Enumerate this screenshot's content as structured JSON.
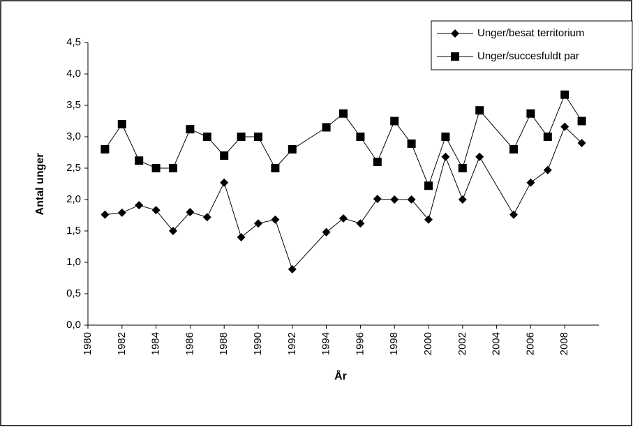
{
  "chart_data": {
    "type": "line",
    "y_label": "Antal unger",
    "x_label": "År",
    "x": [
      1981,
      1982,
      1983,
      1984,
      1985,
      1986,
      1987,
      1988,
      1989,
      1990,
      1991,
      1992,
      1994,
      1995,
      1996,
      1997,
      1998,
      1999,
      2000,
      2001,
      2002,
      2003,
      2005,
      2006,
      2007,
      2008,
      2009
    ],
    "series": [
      {
        "name": "Unger/besat territorium",
        "color": "#000000",
        "marker": "diamond",
        "values": [
          1.76,
          1.79,
          1.91,
          1.83,
          1.5,
          1.8,
          1.72,
          2.27,
          1.4,
          1.62,
          1.68,
          0.89,
          1.48,
          1.7,
          1.62,
          2.01,
          2.0,
          2.0,
          1.68,
          2.68,
          2.0,
          2.68,
          1.76,
          2.27,
          2.47,
          3.16,
          2.9
        ]
      },
      {
        "name": "Unger/succesfuldt par",
        "color": "#000000",
        "marker": "square",
        "values": [
          2.8,
          3.2,
          2.62,
          2.5,
          2.5,
          3.12,
          3.0,
          2.7,
          3.0,
          3.0,
          2.5,
          2.8,
          3.15,
          3.37,
          3.0,
          2.6,
          3.25,
          2.89,
          2.22,
          3.0,
          2.5,
          3.42,
          2.8,
          3.37,
          3.0,
          3.67,
          3.25
        ]
      }
    ],
    "xlim": [
      1980,
      2010
    ],
    "xticks": [
      1980,
      1982,
      1984,
      1986,
      1988,
      1990,
      1992,
      1994,
      1996,
      1998,
      2000,
      2002,
      2004,
      2006,
      2008
    ],
    "ylim": [
      0,
      4.5
    ],
    "yticks": [
      {
        "value": 0,
        "label": "0,0"
      },
      {
        "value": 0.5,
        "label": "0,5"
      },
      {
        "value": 1,
        "label": "1,0"
      },
      {
        "value": 1.5,
        "label": "1,5"
      },
      {
        "value": 2,
        "label": "2,0"
      },
      {
        "value": 2.5,
        "label": "2,5"
      },
      {
        "value": 3,
        "label": "3,0"
      },
      {
        "value": 3.5,
        "label": "3,5"
      },
      {
        "value": 4,
        "label": "4,0"
      },
      {
        "value": 4.5,
        "label": "4,5"
      }
    ],
    "grid": false,
    "legend": "top-right"
  }
}
